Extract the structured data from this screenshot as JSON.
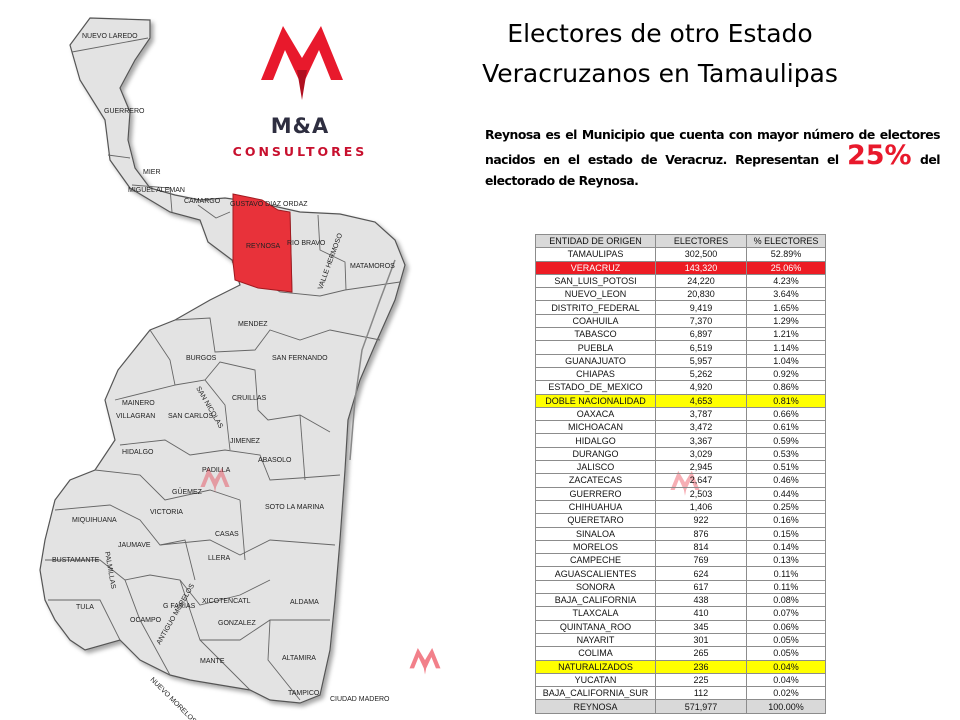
{
  "title_line1": "Electores de otro Estado",
  "title_line2": "Veracruzanos en Tamaulipas",
  "description": {
    "text_before": "Reynosa es el Municipio que cuenta con mayor número de electores nacidos en el estado de Veracruz. Representan el ",
    "highlight": "25%",
    "text_after": " del electorado de Reynosa."
  },
  "logo": {
    "name": "M&A",
    "subtitle": "CONSULTORES"
  },
  "colors": {
    "accent": "#e8192c",
    "highlight_red": "#ed1c24",
    "highlight_yellow": "#ffff00",
    "map_fill": "#e3e3e3",
    "reynosa_fill": "#e8323a"
  },
  "map": {
    "municipalities": [
      "NUEVO LAREDO",
      "GUERRERO",
      "MIER",
      "MIGUEL ALEMAN",
      "CAMARGO",
      "GUSTAVO DIAZ ORDAZ",
      "REYNOSA",
      "RIO BRAVO",
      "VALLE HERMOSO",
      "MATAMOROS",
      "MENDEZ",
      "BURGOS",
      "SAN FERNANDO",
      "MAINERO",
      "VILLAGRAN",
      "SAN CARLOS",
      "SAN NICOLAS",
      "CRUILLAS",
      "HIDALGO",
      "JIMENEZ",
      "ABASOLO",
      "PADILLA",
      "GÜEMEZ",
      "VICTORIA",
      "SOTO LA MARINA",
      "MIQUIHUANA",
      "JAUMAVE",
      "CASAS",
      "BUSTAMANTE",
      "PALMILLAS",
      "LLERA",
      "TULA",
      "G FARIAS",
      "XICOTENCATL",
      "ALDAMA",
      "OCAMPO",
      "GONZALEZ",
      "ANTIGUO MORELOS",
      "MANTE",
      "ALTAMIRA",
      "NUEVO MORELOS",
      "TAMPICO",
      "CIUDAD MADERO"
    ],
    "highlighted": "REYNOSA"
  },
  "table": {
    "headers": [
      "ENTIDAD DE ORIGEN",
      "ELECTORES",
      "% ELECTORES"
    ],
    "rows": [
      {
        "entity": "TAMAULIPAS",
        "voters": "302,500",
        "pct": "52.89%",
        "hl": ""
      },
      {
        "entity": "VERACRUZ",
        "voters": "143,320",
        "pct": "25.06%",
        "hl": "red"
      },
      {
        "entity": "SAN_LUIS_POTOSI",
        "voters": "24,220",
        "pct": "4.23%",
        "hl": ""
      },
      {
        "entity": "NUEVO_LEON",
        "voters": "20,830",
        "pct": "3.64%",
        "hl": ""
      },
      {
        "entity": "DISTRITO_FEDERAL",
        "voters": "9,419",
        "pct": "1.65%",
        "hl": ""
      },
      {
        "entity": "COAHUILA",
        "voters": "7,370",
        "pct": "1.29%",
        "hl": ""
      },
      {
        "entity": "TABASCO",
        "voters": "6,897",
        "pct": "1.21%",
        "hl": ""
      },
      {
        "entity": "PUEBLA",
        "voters": "6,519",
        "pct": "1.14%",
        "hl": ""
      },
      {
        "entity": "GUANAJUATO",
        "voters": "5,957",
        "pct": "1.04%",
        "hl": ""
      },
      {
        "entity": "CHIAPAS",
        "voters": "5,262",
        "pct": "0.92%",
        "hl": ""
      },
      {
        "entity": "ESTADO_DE_MEXICO",
        "voters": "4,920",
        "pct": "0.86%",
        "hl": ""
      },
      {
        "entity": "DOBLE NACIONALIDAD",
        "voters": "4,653",
        "pct": "0.81%",
        "hl": "yellow"
      },
      {
        "entity": "OAXACA",
        "voters": "3,787",
        "pct": "0.66%",
        "hl": ""
      },
      {
        "entity": "MICHOACAN",
        "voters": "3,472",
        "pct": "0.61%",
        "hl": ""
      },
      {
        "entity": "HIDALGO",
        "voters": "3,367",
        "pct": "0.59%",
        "hl": ""
      },
      {
        "entity": "DURANGO",
        "voters": "3,029",
        "pct": "0.53%",
        "hl": ""
      },
      {
        "entity": "JALISCO",
        "voters": "2,945",
        "pct": "0.51%",
        "hl": ""
      },
      {
        "entity": "ZACATECAS",
        "voters": "2,647",
        "pct": "0.46%",
        "hl": ""
      },
      {
        "entity": "GUERRERO",
        "voters": "2,503",
        "pct": "0.44%",
        "hl": ""
      },
      {
        "entity": "CHIHUAHUA",
        "voters": "1,406",
        "pct": "0.25%",
        "hl": ""
      },
      {
        "entity": "QUERETARO",
        "voters": "922",
        "pct": "0.16%",
        "hl": ""
      },
      {
        "entity": "SINALOA",
        "voters": "876",
        "pct": "0.15%",
        "hl": ""
      },
      {
        "entity": "MORELOS",
        "voters": "814",
        "pct": "0.14%",
        "hl": ""
      },
      {
        "entity": "CAMPECHE",
        "voters": "769",
        "pct": "0.13%",
        "hl": ""
      },
      {
        "entity": "AGUASCALIENTES",
        "voters": "624",
        "pct": "0.11%",
        "hl": ""
      },
      {
        "entity": "SONORA",
        "voters": "617",
        "pct": "0.11%",
        "hl": ""
      },
      {
        "entity": "BAJA_CALIFORNIA",
        "voters": "438",
        "pct": "0.08%",
        "hl": ""
      },
      {
        "entity": "TLAXCALA",
        "voters": "410",
        "pct": "0.07%",
        "hl": ""
      },
      {
        "entity": "QUINTANA_ROO",
        "voters": "345",
        "pct": "0.06%",
        "hl": ""
      },
      {
        "entity": "NAYARIT",
        "voters": "301",
        "pct": "0.05%",
        "hl": ""
      },
      {
        "entity": "COLIMA",
        "voters": "265",
        "pct": "0.05%",
        "hl": ""
      },
      {
        "entity": "NATURALIZADOS",
        "voters": "236",
        "pct": "0.04%",
        "hl": "yellow"
      },
      {
        "entity": "YUCATAN",
        "voters": "225",
        "pct": "0.04%",
        "hl": ""
      },
      {
        "entity": "BAJA_CALIFORNIA_SUR",
        "voters": "112",
        "pct": "0.02%",
        "hl": ""
      }
    ],
    "total": {
      "entity": "REYNOSA",
      "voters": "571,977",
      "pct": "100.00%"
    }
  }
}
